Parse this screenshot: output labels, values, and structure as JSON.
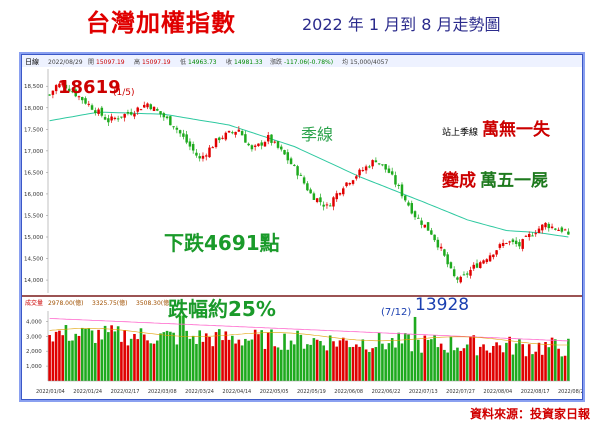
{
  "title": "台灣加權指數",
  "subtitle": "2022 年 1 月到 8 月走勢圖",
  "source": "資料來源：投資家日報",
  "header_bar": {
    "tab": "日線",
    "date": "2022/08/29",
    "open_label": "開",
    "open": "15097.19",
    "high_label": "高",
    "high": "15097.19",
    "low_label": "低",
    "low": "14963.73",
    "close_label": "收",
    "close": "14981.33",
    "change_label": "漲跌",
    "change": "-117.06(-0.78%)",
    "ma_label": "均",
    "ma": "15,000/4057"
  },
  "volume_header": {
    "tab": "成交量",
    "v1": "2978.00(億)",
    "v2": "3325.75(億)",
    "v3": "3508.30(億)"
  },
  "annotations": {
    "high": "18619",
    "high_date": "(1/5)",
    "season_line": "季線",
    "text1_prefix": "站上季線",
    "text1_main": "萬無一失",
    "text2_red": "變成",
    "text2_main": "萬五一屍",
    "drop": "下跌4691點",
    "drop_pct": "跌幅約25%",
    "low_date": "(7/12)",
    "low": "13928"
  },
  "colors": {
    "up": "#e00000",
    "down": "#1eaa1e",
    "ma_line": "#2ec9a0",
    "separator": "#7a1a1a",
    "vol_ma": "#ff66cc"
  },
  "chart_data": {
    "type": "candlestick",
    "title": "台灣加權指數",
    "y_ticks": [
      18500,
      18000,
      17500,
      17000,
      16500,
      16000,
      15500,
      15000,
      14500,
      14000
    ],
    "ylim": [
      13700,
      18900
    ],
    "vol_ticks": [
      4000,
      3000,
      2000,
      1000
    ],
    "vol_ylim": [
      0,
      4700
    ],
    "x_ticks": [
      "2022/01/04",
      "2022/01/24",
      "2022/02/17",
      "2022/03/08",
      "2022/03/24",
      "2022/04/14",
      "2022/05/05",
      "2022/05/19",
      "2022/06/08",
      "2022/06/22",
      "2022/07/13",
      "2022/07/27",
      "2022/08/04",
      "2022/08/17",
      "2022/08/29"
    ],
    "num_bars": 160,
    "close_anchors": [
      [
        0,
        18300
      ],
      [
        3,
        18619
      ],
      [
        10,
        18200
      ],
      [
        18,
        17700
      ],
      [
        25,
        17900
      ],
      [
        30,
        18100
      ],
      [
        38,
        17600
      ],
      [
        42,
        17200
      ],
      [
        46,
        16800
      ],
      [
        52,
        17300
      ],
      [
        58,
        17500
      ],
      [
        62,
        17000
      ],
      [
        67,
        17300
      ],
      [
        72,
        16900
      ],
      [
        76,
        16500
      ],
      [
        80,
        16000
      ],
      [
        85,
        15700
      ],
      [
        90,
        16200
      ],
      [
        95,
        16500
      ],
      [
        100,
        16800
      ],
      [
        104,
        16500
      ],
      [
        108,
        16000
      ],
      [
        112,
        15500
      ],
      [
        117,
        15100
      ],
      [
        120,
        14700
      ],
      [
        123,
        14200
      ],
      [
        125,
        13928
      ],
      [
        130,
        14300
      ],
      [
        135,
        14600
      ],
      [
        140,
        14900
      ],
      [
        144,
        14800
      ],
      [
        148,
        15100
      ],
      [
        152,
        15300
      ],
      [
        155,
        15200
      ],
      [
        158,
        15150
      ],
      [
        159,
        14981
      ]
    ],
    "ma_anchors": [
      [
        0,
        17700
      ],
      [
        15,
        17900
      ],
      [
        35,
        17850
      ],
      [
        55,
        17600
      ],
      [
        75,
        17100
      ],
      [
        95,
        16400
      ],
      [
        115,
        15800
      ],
      [
        128,
        15400
      ],
      [
        140,
        15150
      ],
      [
        150,
        15100
      ],
      [
        159,
        15000
      ]
    ],
    "high_value": 18619,
    "low_value": 13928
  }
}
